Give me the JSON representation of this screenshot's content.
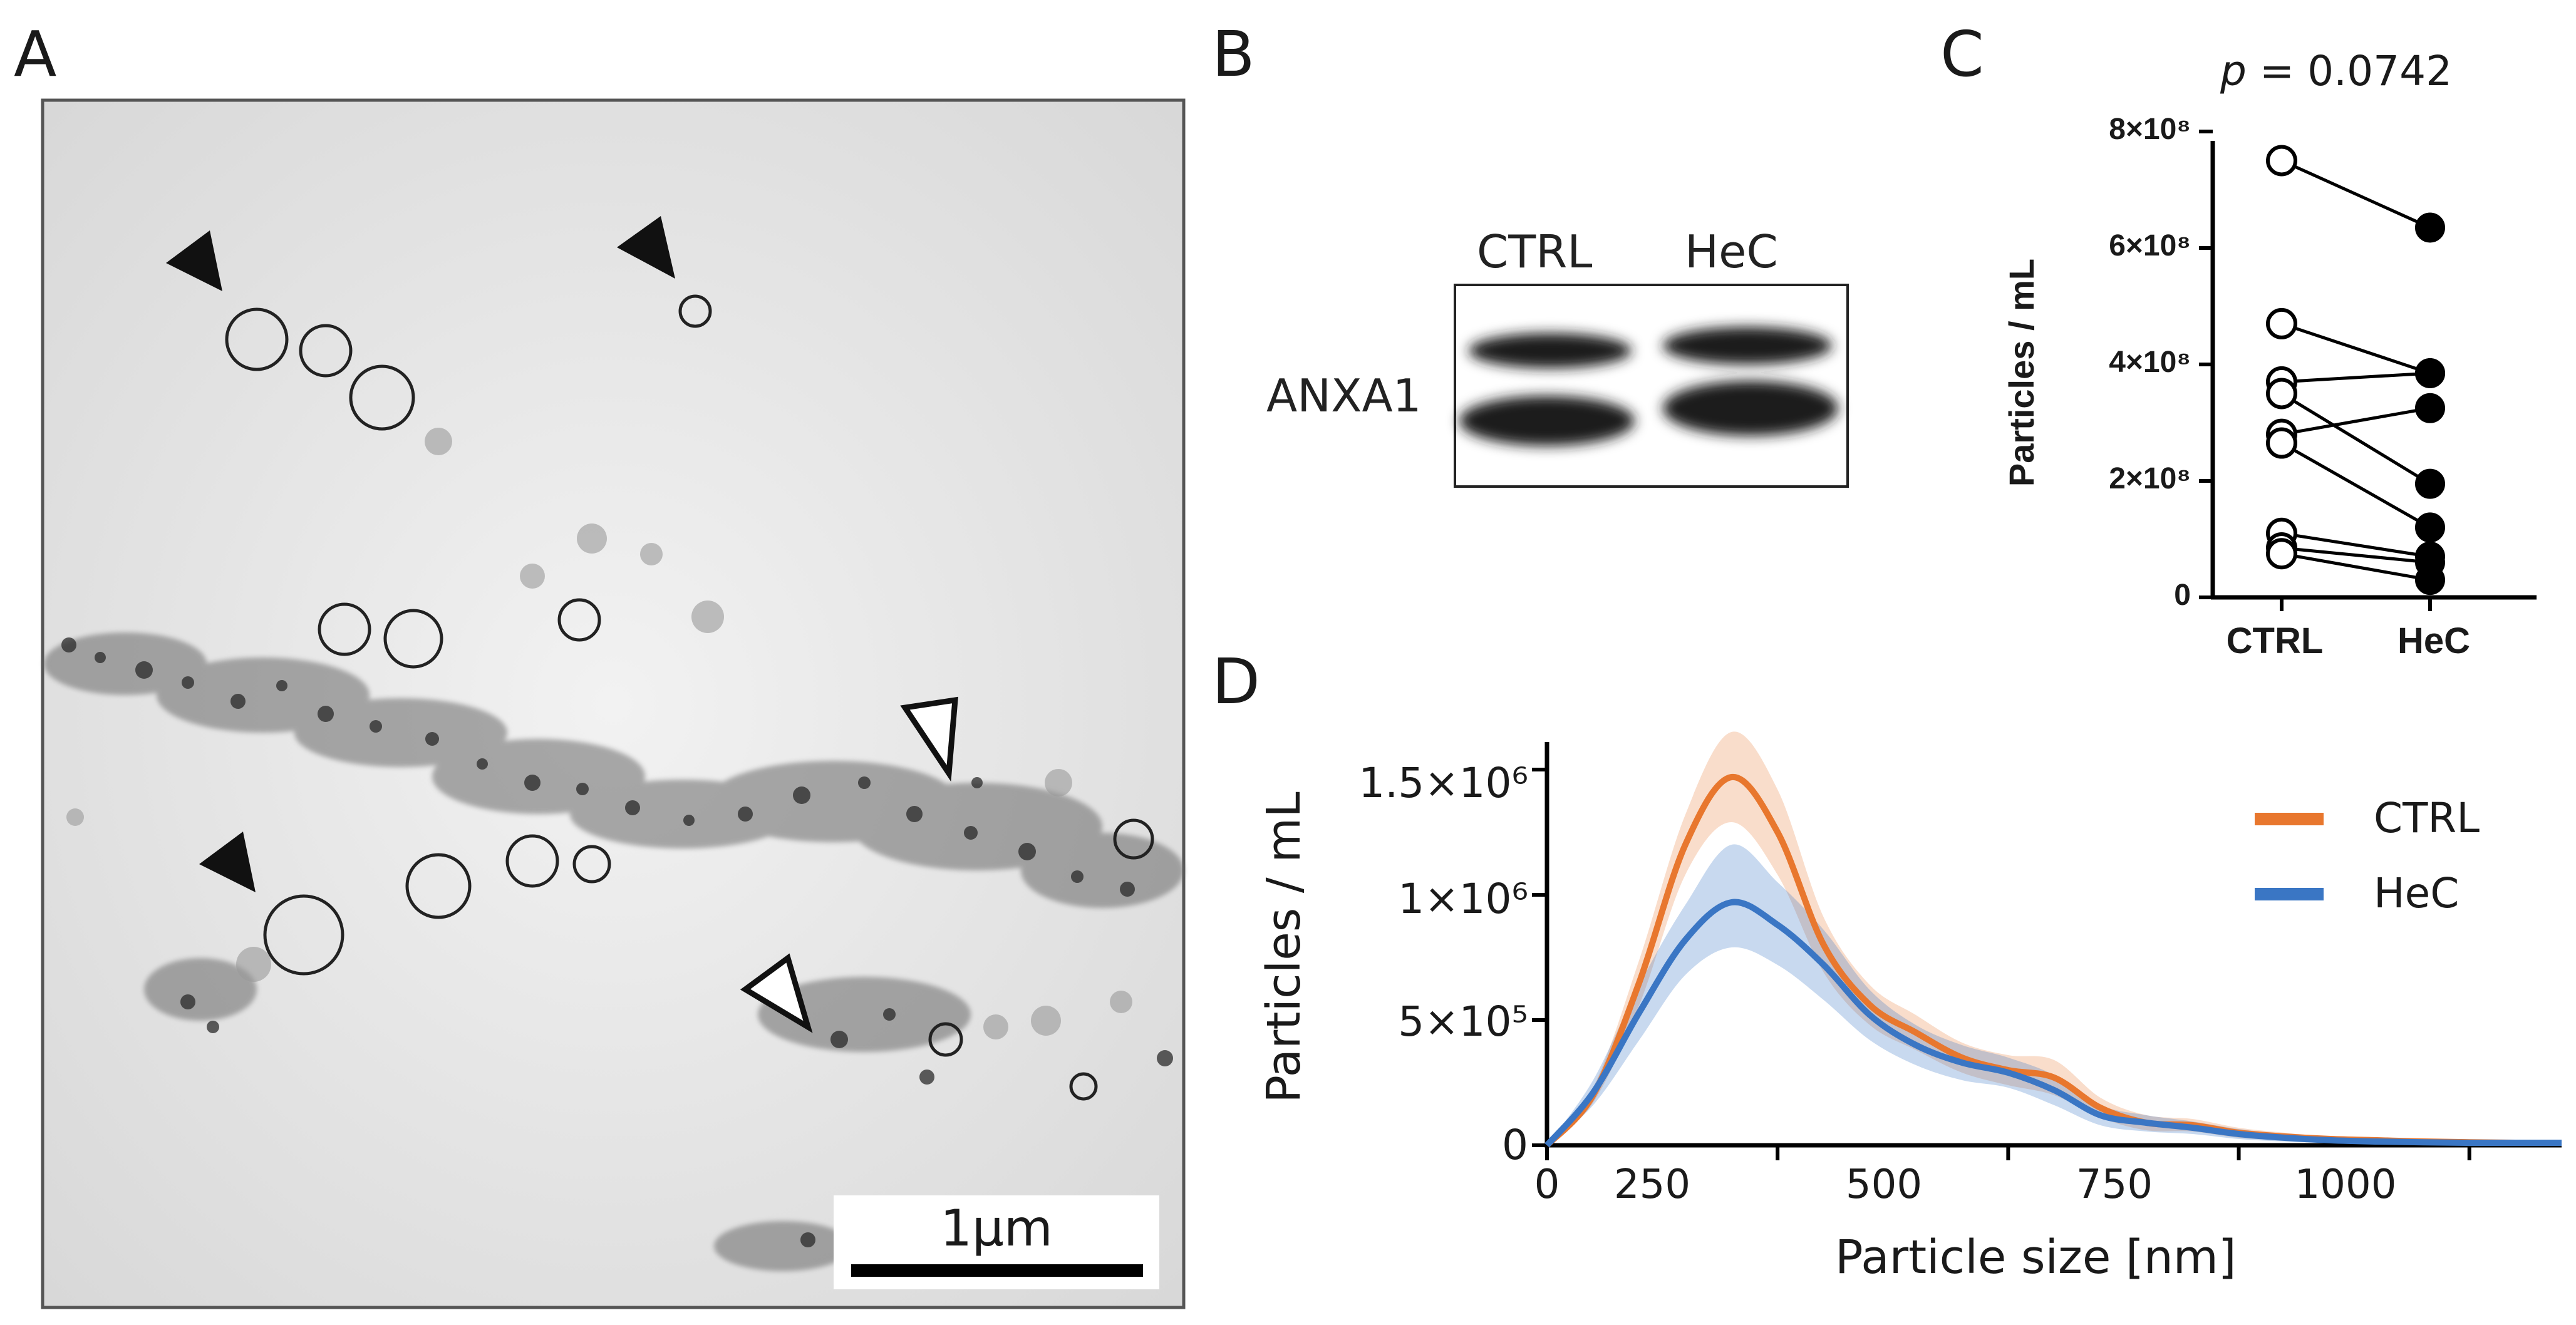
{
  "panels": {
    "A": {
      "letter": "A",
      "scalebar_label": "1µm",
      "marker_solid_icon": "filled-arrowhead-icon",
      "marker_open_icon": "open-arrowhead-icon"
    },
    "B": {
      "letter": "B",
      "lanes": [
        "CTRL",
        "HeC"
      ],
      "row_label": "ANXA1"
    },
    "C": {
      "letter": "C",
      "p_label": "p",
      "p_value": " = 0.0742",
      "ylabel": "Particles / mL",
      "yticks": [
        "0",
        "2×10⁸",
        "4×10⁸",
        "6×10⁸",
        "8×10⁸"
      ],
      "categories": [
        "CTRL",
        "HeC"
      ]
    },
    "D": {
      "letter": "D",
      "ylabel": "Particles / mL",
      "xlabel": "Particle size [nm]",
      "yticks": [
        "0",
        "5×10⁵",
        "1×10⁶",
        "1.5×10⁶"
      ],
      "xticks": [
        "0",
        "250",
        "500",
        "750",
        "1000"
      ],
      "legend": [
        "CTRL",
        "HeC"
      ]
    }
  },
  "colors": {
    "ctrl": "#e8772e",
    "hec": "#3a76c4",
    "axis": "#000000"
  },
  "chart_data": [
    {
      "type": "scatter",
      "panel": "C",
      "categories": [
        "CTRL",
        "HeC"
      ],
      "ylim": [
        0,
        800000000
      ],
      "pairs": [
        [
          750000000,
          635000000
        ],
        [
          470000000,
          385000000
        ],
        [
          370000000,
          385000000
        ],
        [
          350000000,
          195000000
        ],
        [
          280000000,
          325000000
        ],
        [
          265000000,
          120000000
        ],
        [
          110000000,
          70000000
        ],
        [
          85000000,
          60000000
        ],
        [
          75000000,
          30000000
        ]
      ]
    },
    {
      "type": "line",
      "panel": "D",
      "xlim": [
        0,
        1100
      ],
      "ylim": [
        0,
        1600000
      ],
      "x": [
        0,
        50,
        100,
        150,
        200,
        250,
        300,
        350,
        400,
        450,
        500,
        550,
        600,
        650,
        700,
        750,
        800,
        850,
        900,
        950,
        1000,
        1050,
        1100
      ],
      "series": [
        {
          "name": "CTRL",
          "values": [
            0,
            200000,
            650000,
            1200000,
            1470000,
            1250000,
            800000,
            560000,
            450000,
            350000,
            300000,
            270000,
            150000,
            90000,
            80000,
            50000,
            35000,
            25000,
            20000,
            15000,
            12000,
            10000,
            10000
          ],
          "lower": [
            0,
            170000,
            560000,
            1080000,
            1290000,
            1080000,
            690000,
            480000,
            380000,
            290000,
            240000,
            200000,
            110000,
            60000,
            55000,
            30000,
            20000,
            15000,
            10000,
            8000,
            6000,
            5000,
            5000
          ],
          "upper": [
            0,
            230000,
            740000,
            1320000,
            1650000,
            1420000,
            910000,
            640000,
            520000,
            410000,
            360000,
            340000,
            190000,
            120000,
            105000,
            70000,
            50000,
            35000,
            30000,
            22000,
            18000,
            15000,
            15000
          ]
        },
        {
          "name": "HeC",
          "values": [
            0,
            210000,
            530000,
            820000,
            970000,
            880000,
            720000,
            520000,
            400000,
            330000,
            290000,
            220000,
            120000,
            90000,
            70000,
            45000,
            30000,
            20000,
            15000,
            12000,
            10000,
            10000,
            10000
          ],
          "lower": [
            0,
            160000,
            420000,
            680000,
            790000,
            720000,
            580000,
            420000,
            320000,
            260000,
            230000,
            160000,
            80000,
            55000,
            45000,
            25000,
            15000,
            10000,
            7000,
            5000,
            4000,
            4000,
            4000
          ],
          "upper": [
            0,
            260000,
            640000,
            960000,
            1200000,
            1050000,
            860000,
            620000,
            480000,
            400000,
            350000,
            280000,
            160000,
            120000,
            95000,
            65000,
            45000,
            30000,
            23000,
            19000,
            16000,
            16000,
            16000
          ]
        }
      ]
    }
  ]
}
